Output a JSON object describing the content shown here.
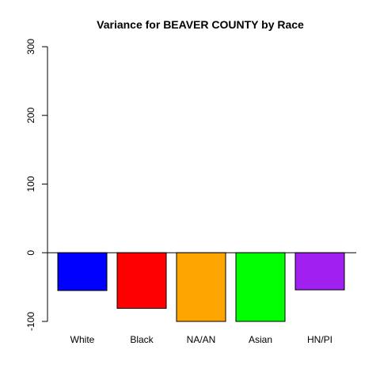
{
  "chart_data": {
    "type": "bar",
    "title": "Variance for BEAVER COUNTY by Race",
    "xlabel": "",
    "ylabel": "",
    "categories": [
      "White",
      "Black",
      "NA/AN",
      "Asian",
      "HN/PI"
    ],
    "values": [
      -55,
      -81,
      -100,
      -100,
      -54
    ],
    "colors": [
      "#0000FF",
      "#FF0000",
      "#FFA500",
      "#00FF00",
      "#A020F0"
    ],
    "ylim": [
      -100,
      300
    ],
    "yticks": [
      -100,
      0,
      100,
      200,
      300
    ],
    "ytick_labels": [
      "-100",
      "0",
      "100",
      "200",
      "300"
    ],
    "baseline": 0,
    "grid": false,
    "legend": "none"
  }
}
